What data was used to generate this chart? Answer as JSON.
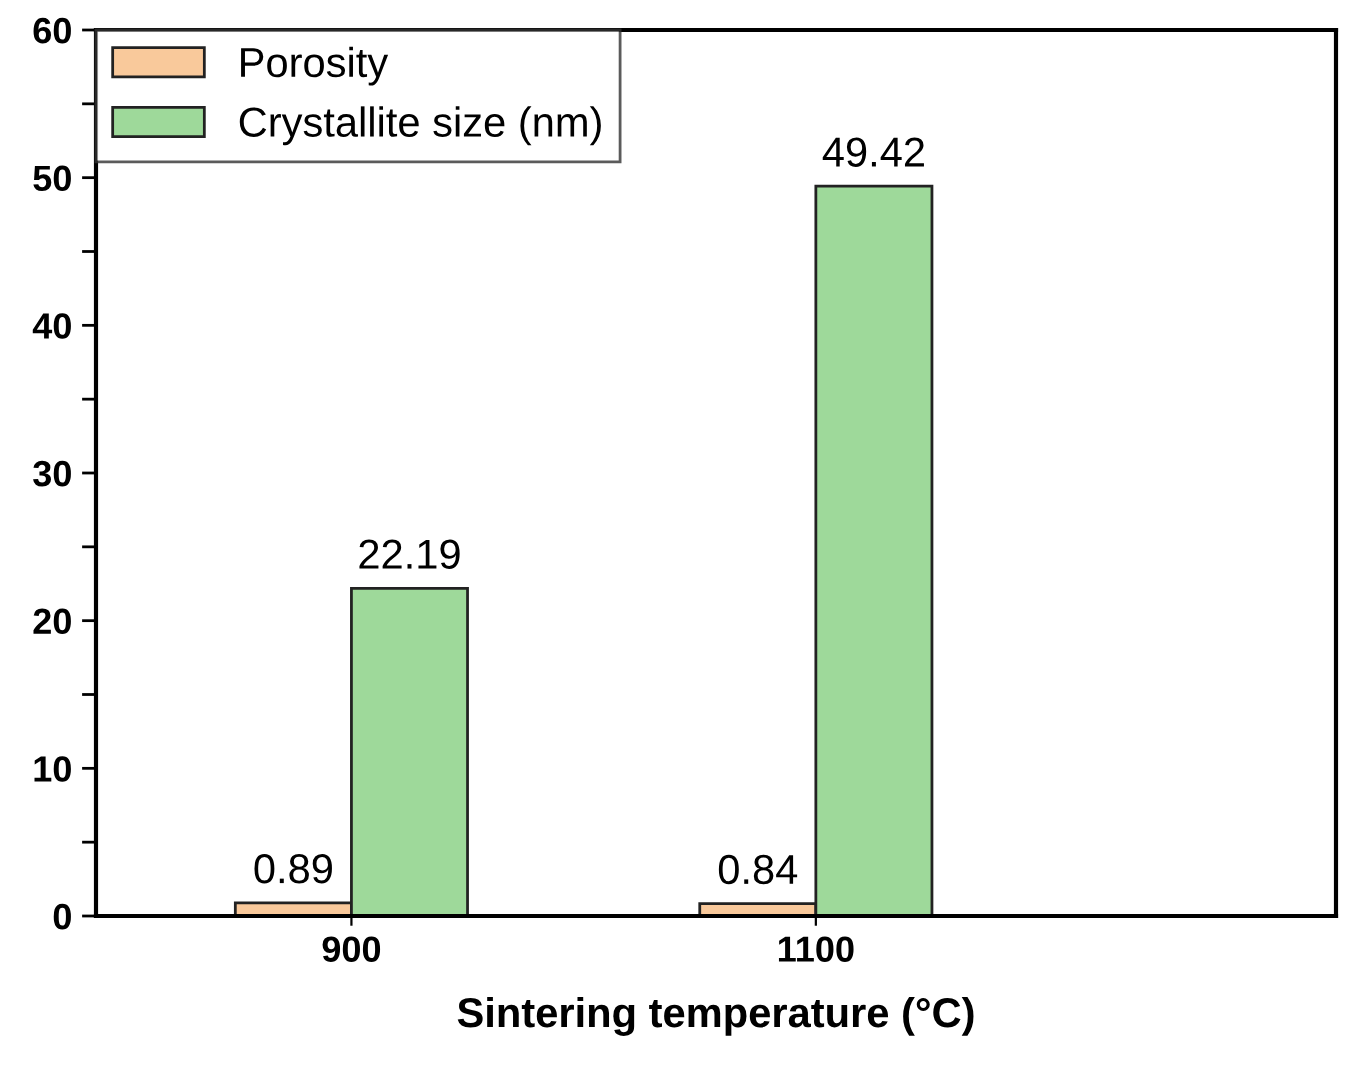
{
  "chart_data": {
    "type": "bar",
    "xlabel": "Sintering temperature (°C)",
    "categories": [
      "900",
      "1100"
    ],
    "series": [
      {
        "name": "Porosity",
        "color": "#f9c99b",
        "values": [
          0.89,
          0.84
        ]
      },
      {
        "name": "Crystallite size (nm)",
        "color": "#9ed99a",
        "values": [
          22.19,
          49.42
        ]
      }
    ],
    "ylim": [
      0,
      60
    ],
    "yticks": [
      0,
      {
        "value": 5,
        "label": null
      },
      10,
      {
        "value": 15,
        "label": null
      },
      20,
      {
        "value": 25,
        "label": null
      },
      30,
      {
        "value": 35,
        "label": null
      },
      40,
      {
        "value": 45,
        "label": null
      },
      50,
      {
        "value": 55,
        "label": null
      },
      60
    ],
    "data_labels": true,
    "legend": "top left",
    "grid": false
  }
}
